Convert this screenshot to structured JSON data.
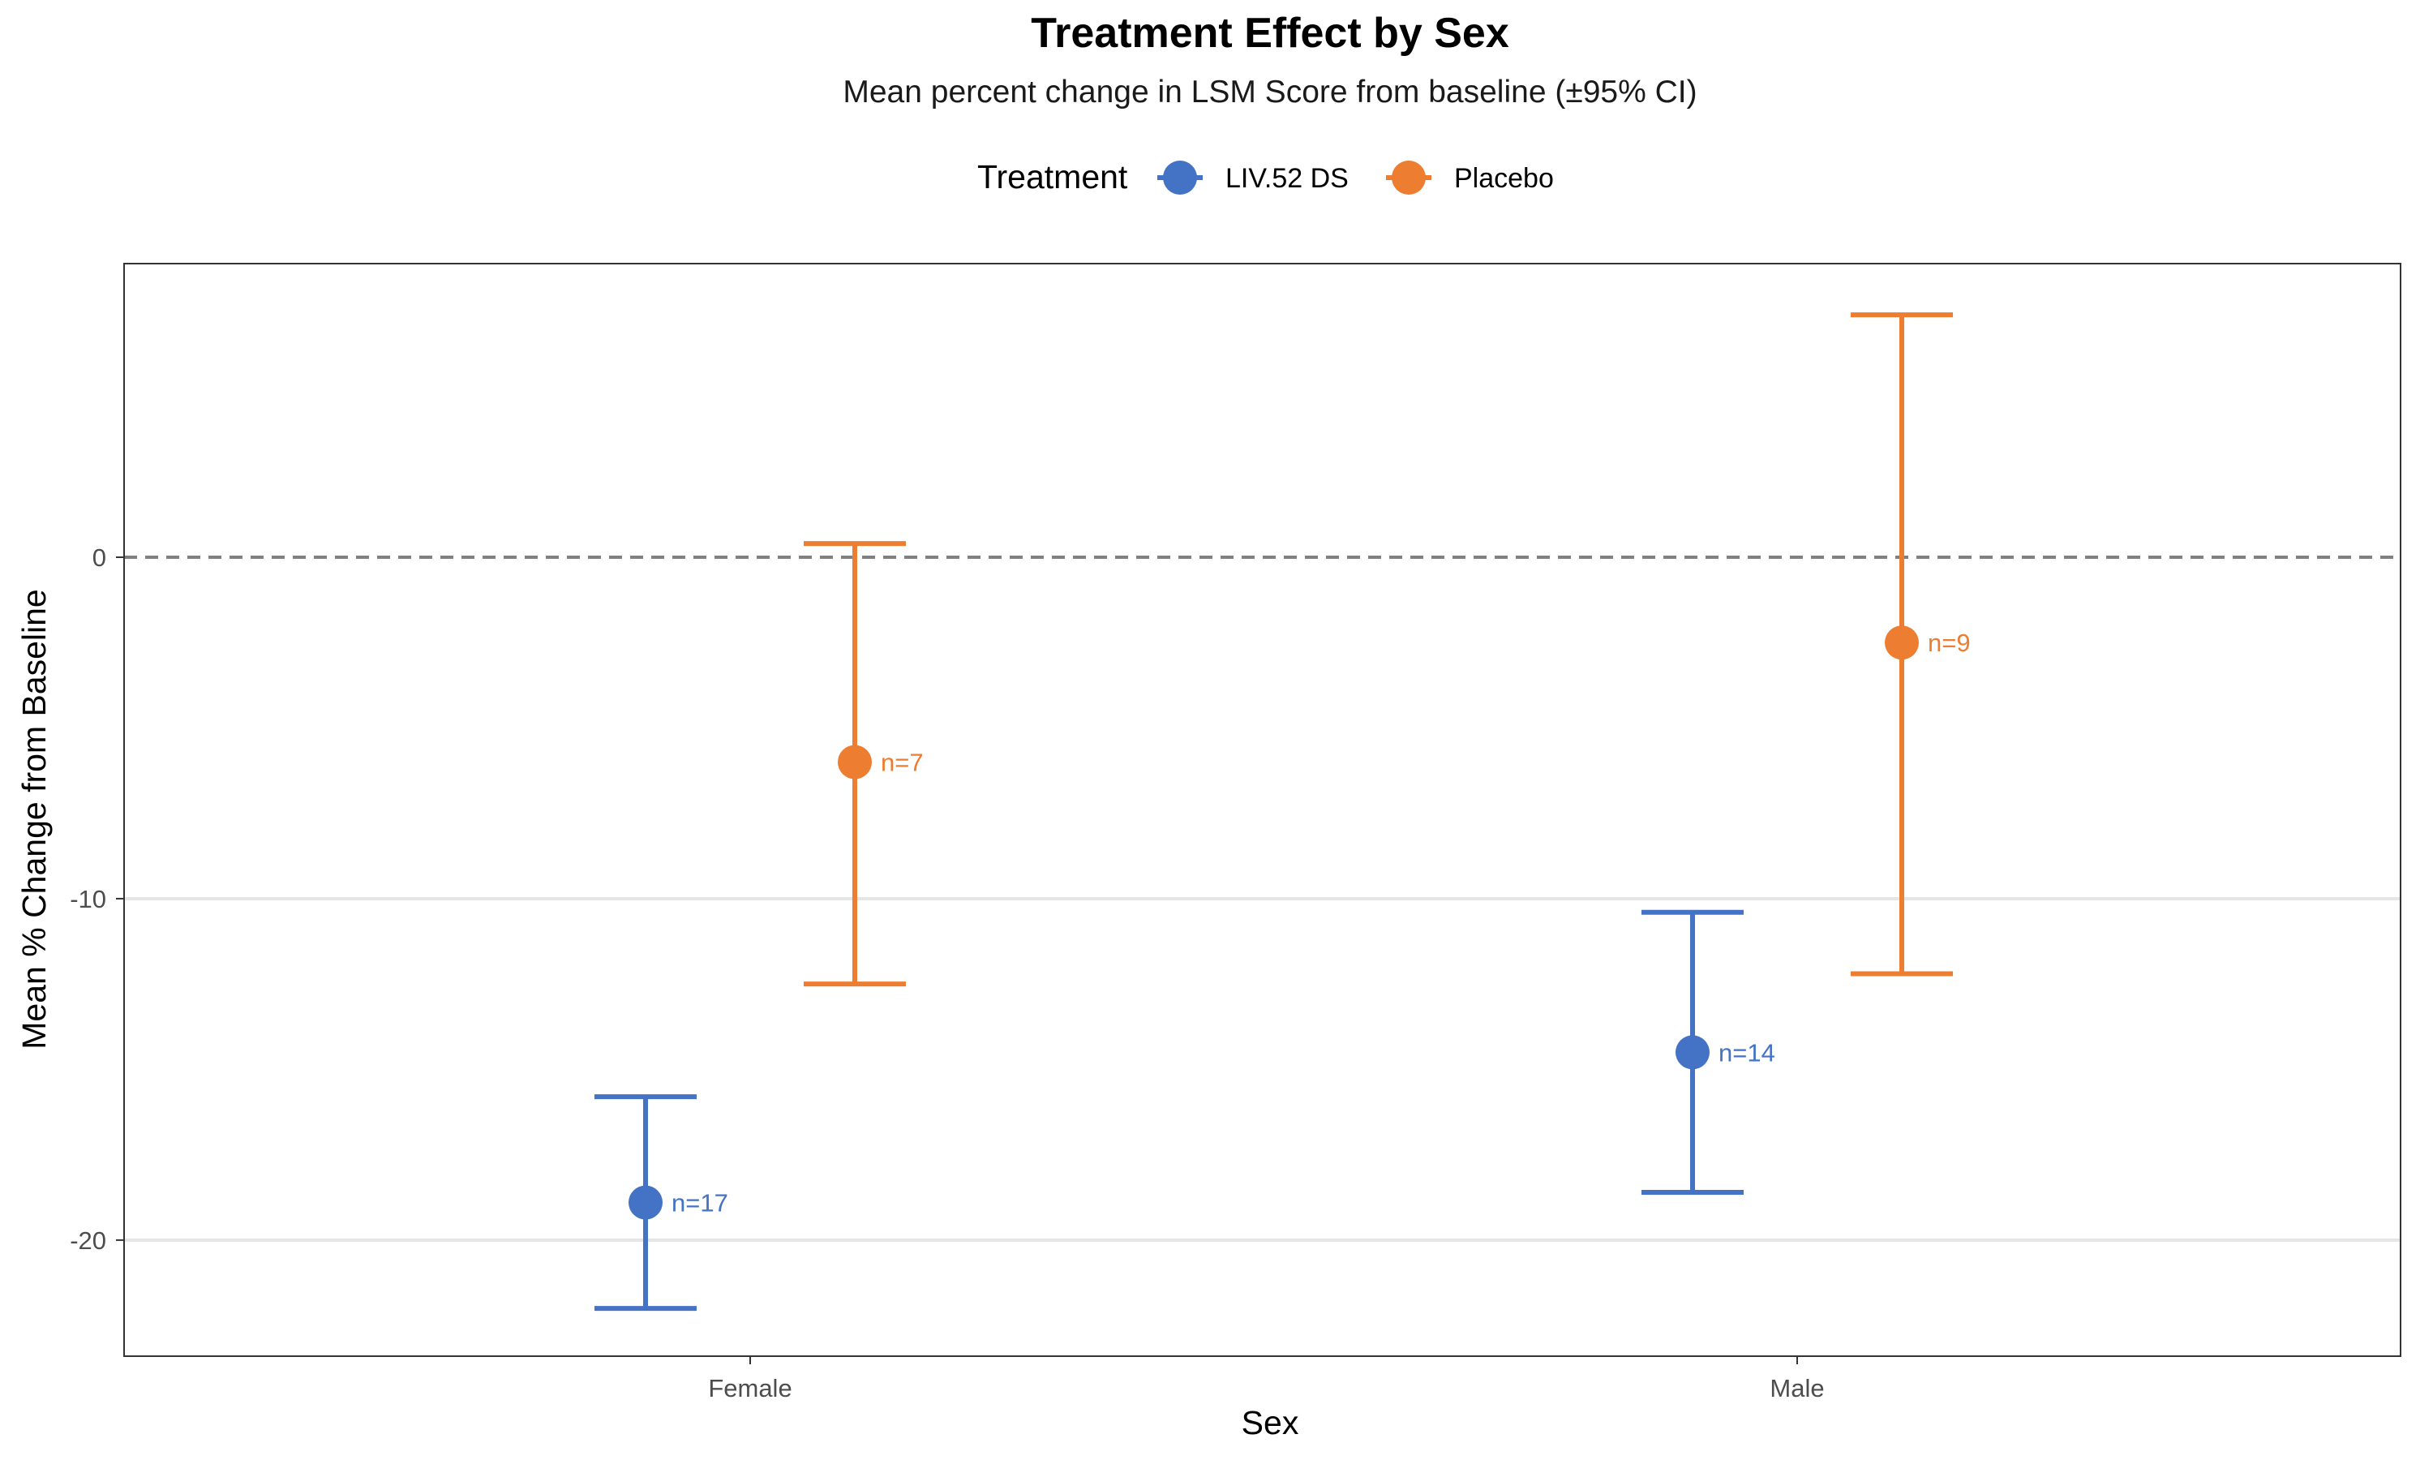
{
  "colors": {
    "LIV.52 DS": "#4472C4",
    "Placebo": "#ED7D31"
  },
  "chart_data": {
    "type": "errorbar",
    "title": "Treatment Effect by Sex",
    "subtitle": "Mean percent change in LSM Score from baseline (±95% CI)",
    "xlabel": "Sex",
    "ylabel": "Mean % Change from Baseline",
    "categories": [
      "Female",
      "Male"
    ],
    "ylim": [
      -23.4,
      8.6
    ],
    "yticks": [
      0,
      -10,
      -20
    ],
    "reference_line": 0,
    "legend": {
      "title": "Treatment",
      "position": "top"
    },
    "grid": {
      "horizontal_major": true,
      "vertical": false
    },
    "series": [
      {
        "name": "LIV.52 DS",
        "points": [
          {
            "category": "Female",
            "mean": -18.9,
            "lower": -22.0,
            "upper": -15.8,
            "label": "n=17"
          },
          {
            "category": "Male",
            "mean": -14.5,
            "lower": -18.6,
            "upper": -10.4,
            "label": "n=14"
          }
        ]
      },
      {
        "name": "Placebo",
        "points": [
          {
            "category": "Female",
            "mean": -6.0,
            "lower": -12.5,
            "upper": 0.4,
            "label": "n=7"
          },
          {
            "category": "Male",
            "mean": -2.5,
            "lower": -12.2,
            "upper": 7.1,
            "label": "n=9"
          }
        ]
      }
    ]
  }
}
